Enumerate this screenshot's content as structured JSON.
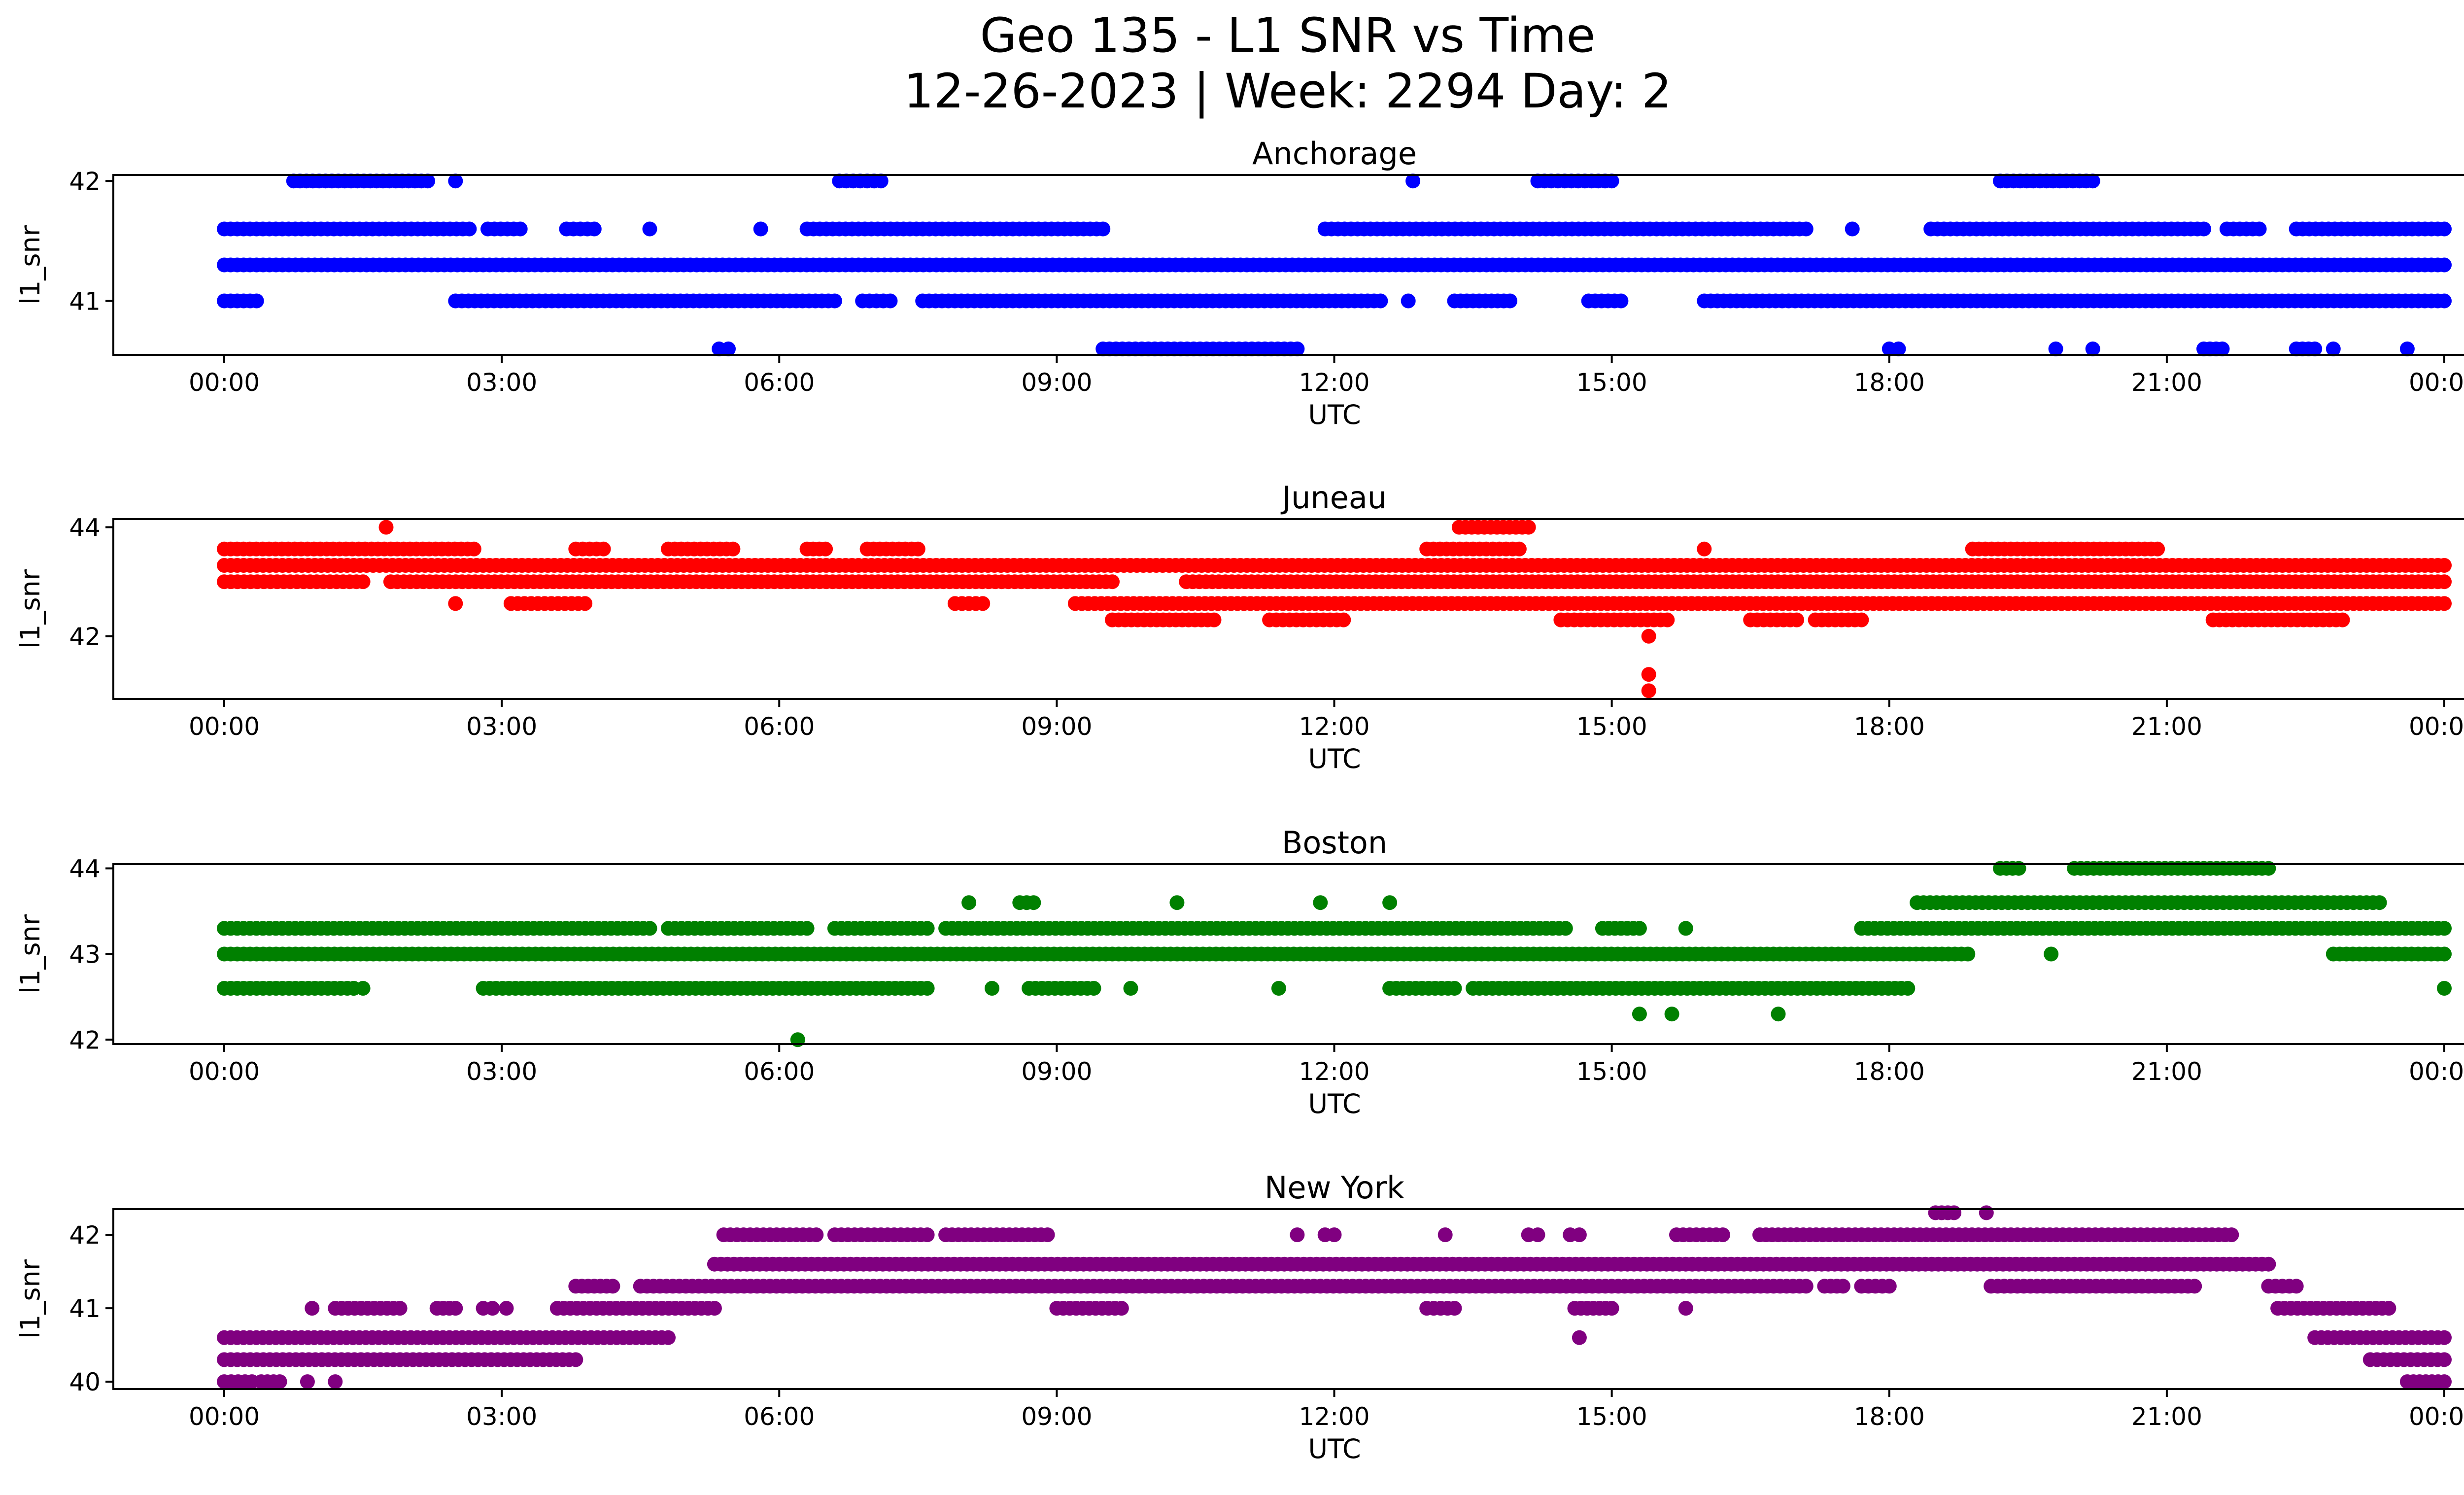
{
  "title_lines": [
    "Geo 135 - L1 SNR vs Time",
    "12-26-2023 | Week: 2294 Day: 2"
  ],
  "chart_data": [
    {
      "type": "scatter",
      "title": "Anchorage",
      "xlabel": "UTC",
      "ylabel": "l1_snr",
      "color": "#0000ff",
      "x_ticks": [
        "00:00",
        "03:00",
        "06:00",
        "09:00",
        "12:00",
        "15:00",
        "18:00",
        "21:00",
        "00:00"
      ],
      "y_ticks": [
        41,
        42
      ],
      "ylim": [
        40.55,
        42.05
      ],
      "series": [
        {
          "y": 42.0,
          "segments": [
            [
              0.75,
              2.2
            ],
            [
              2.5,
              2.5
            ],
            [
              6.65,
              7.1
            ],
            [
              12.85,
              12.85
            ],
            [
              14.2,
              15.0
            ],
            [
              19.2,
              20.2
            ]
          ]
        },
        {
          "y": 41.6,
          "segments": [
            [
              0.0,
              2.65
            ],
            [
              2.85,
              3.2
            ],
            [
              3.7,
              4.0
            ],
            [
              4.6,
              4.6
            ],
            [
              5.8,
              5.8
            ],
            [
              6.3,
              9.5
            ],
            [
              11.9,
              17.1
            ],
            [
              17.6,
              17.6
            ],
            [
              18.45,
              21.4
            ],
            [
              21.65,
              22.0
            ],
            [
              22.4,
              24.0
            ]
          ]
        },
        {
          "y": 41.3,
          "segments": [
            [
              0.0,
              24.0
            ]
          ]
        },
        {
          "y": 41.0,
          "segments": [
            [
              0.0,
              0.35
            ],
            [
              2.5,
              6.6
            ],
            [
              6.9,
              7.2
            ],
            [
              7.55,
              12.5
            ],
            [
              12.8,
              12.8
            ],
            [
              13.3,
              13.9
            ],
            [
              14.75,
              15.1
            ],
            [
              16.0,
              24.0
            ]
          ]
        },
        {
          "y": 40.6,
          "segments": [
            [
              5.35,
              5.45
            ],
            [
              9.5,
              11.6
            ],
            [
              18.0,
              18.1
            ],
            [
              19.8,
              19.8
            ],
            [
              20.2,
              20.2
            ],
            [
              21.4,
              21.6
            ],
            [
              22.4,
              22.6
            ],
            [
              22.8,
              22.8
            ],
            [
              23.6,
              23.6
            ]
          ]
        }
      ]
    },
    {
      "type": "scatter",
      "title": "Juneau",
      "xlabel": "UTC",
      "ylabel": "l1_snr",
      "color": "#ff0000",
      "x_ticks": [
        "00:00",
        "03:00",
        "06:00",
        "09:00",
        "12:00",
        "15:00",
        "18:00",
        "21:00",
        "00:00"
      ],
      "y_ticks": [
        42,
        44
      ],
      "ylim": [
        40.85,
        44.15
      ],
      "series": [
        {
          "y": 44.0,
          "segments": [
            [
              1.75,
              1.75
            ],
            [
              13.35,
              14.1
            ]
          ]
        },
        {
          "y": 43.6,
          "segments": [
            [
              0.0,
              2.7
            ],
            [
              3.8,
              4.1
            ],
            [
              4.8,
              5.5
            ],
            [
              6.3,
              6.5
            ],
            [
              6.95,
              7.5
            ],
            [
              13.0,
              14.0
            ],
            [
              16.0,
              16.0
            ],
            [
              18.9,
              20.9
            ]
          ]
        },
        {
          "y": 43.3,
          "segments": [
            [
              0.0,
              24.0
            ]
          ]
        },
        {
          "y": 43.0,
          "segments": [
            [
              0.0,
              1.5
            ],
            [
              1.8,
              9.6
            ],
            [
              10.4,
              14.0
            ],
            [
              14.0,
              24.0
            ]
          ]
        },
        {
          "y": 42.6,
          "segments": [
            [
              2.5,
              2.5
            ],
            [
              3.1,
              3.9
            ],
            [
              7.9,
              8.2
            ],
            [
              9.2,
              24.0
            ]
          ]
        },
        {
          "y": 42.3,
          "segments": [
            [
              9.6,
              10.7
            ],
            [
              11.3,
              12.1
            ],
            [
              14.45,
              15.6
            ],
            [
              16.5,
              17.0
            ],
            [
              17.2,
              17.7
            ],
            [
              21.5,
              22.9
            ]
          ]
        },
        {
          "y": 42.0,
          "segments": [
            [
              15.4,
              15.4
            ]
          ]
        },
        {
          "y": 41.3,
          "segments": [
            [
              15.4,
              15.4
            ]
          ]
        },
        {
          "y": 41.0,
          "segments": [
            [
              15.4,
              15.4
            ]
          ]
        }
      ]
    },
    {
      "type": "scatter",
      "title": "Boston",
      "xlabel": "UTC",
      "ylabel": "l1_snr",
      "color": "#008000",
      "x_ticks": [
        "00:00",
        "03:00",
        "06:00",
        "09:00",
        "12:00",
        "15:00",
        "18:00",
        "21:00",
        "00:00"
      ],
      "y_ticks": [
        42,
        43,
        44
      ],
      "ylim": [
        41.95,
        44.05
      ],
      "series": [
        {
          "y": 44.0,
          "segments": [
            [
              19.2,
              19.4
            ],
            [
              20.0,
              22.1
            ]
          ]
        },
        {
          "y": 43.6,
          "segments": [
            [
              8.05,
              8.05
            ],
            [
              8.6,
              8.75
            ],
            [
              10.3,
              10.3
            ],
            [
              11.85,
              11.85
            ],
            [
              12.6,
              12.6
            ],
            [
              18.3,
              23.3
            ]
          ]
        },
        {
          "y": 43.3,
          "segments": [
            [
              0.0,
              4.6
            ],
            [
              4.8,
              6.3
            ],
            [
              6.6,
              7.6
            ],
            [
              7.8,
              14.5
            ],
            [
              14.9,
              15.3
            ],
            [
              15.8,
              15.8
            ],
            [
              17.7,
              24.0
            ]
          ]
        },
        {
          "y": 43.0,
          "segments": [
            [
              0.0,
              18.85
            ],
            [
              19.75,
              19.75
            ],
            [
              22.8,
              24.0
            ]
          ]
        },
        {
          "y": 42.6,
          "segments": [
            [
              0.0,
              1.4
            ],
            [
              1.4,
              1.5
            ],
            [
              2.8,
              7.6
            ],
            [
              8.3,
              8.3
            ],
            [
              8.7,
              9.4
            ],
            [
              9.8,
              9.8
            ],
            [
              11.4,
              11.4
            ],
            [
              12.6,
              13.3
            ],
            [
              13.5,
              18.2
            ],
            [
              24.0,
              24.0
            ]
          ]
        },
        {
          "y": 42.3,
          "segments": [
            [
              15.3,
              15.3
            ],
            [
              15.65,
              15.65
            ],
            [
              16.8,
              16.8
            ]
          ]
        },
        {
          "y": 42.0,
          "segments": [
            [
              6.2,
              6.2
            ]
          ]
        }
      ]
    },
    {
      "type": "scatter",
      "title": "New York",
      "xlabel": "UTC",
      "ylabel": "l1_snr",
      "color": "#800080",
      "x_ticks": [
        "00:00",
        "03:00",
        "06:00",
        "09:00",
        "12:00",
        "15:00",
        "18:00",
        "21:00",
        "00:00"
      ],
      "y_ticks": [
        40,
        41,
        42
      ],
      "ylim": [
        39.9,
        42.35
      ],
      "series": [
        {
          "y": 42.3,
          "segments": [
            [
              18.5,
              18.7
            ],
            [
              19.05,
              19.05
            ]
          ]
        },
        {
          "y": 42.0,
          "segments": [
            [
              5.4,
              6.4
            ],
            [
              6.6,
              7.6
            ],
            [
              7.8,
              8.9
            ],
            [
              11.6,
              11.6
            ],
            [
              11.9,
              12.0
            ],
            [
              13.2,
              13.2
            ],
            [
              14.1,
              14.2
            ],
            [
              14.55,
              14.65
            ],
            [
              15.7,
              16.2
            ],
            [
              16.6,
              17.0
            ],
            [
              17.0,
              21.7
            ]
          ]
        },
        {
          "y": 41.6,
          "segments": [
            [
              5.3,
              22.1
            ]
          ]
        },
        {
          "y": 41.3,
          "segments": [
            [
              3.8,
              4.2
            ],
            [
              4.5,
              17.1
            ],
            [
              17.3,
              17.5
            ],
            [
              17.7,
              18.0
            ],
            [
              19.1,
              21.3
            ],
            [
              22.1,
              22.4
            ]
          ]
        },
        {
          "y": 41.0,
          "segments": [
            [
              0.95,
              0.95
            ],
            [
              1.2,
              1.9
            ],
            [
              2.3,
              2.5
            ],
            [
              2.8,
              2.9
            ],
            [
              3.05,
              3.05
            ],
            [
              3.6,
              5.3
            ],
            [
              9.0,
              9.7
            ],
            [
              13.0,
              13.3
            ],
            [
              14.6,
              15.0
            ],
            [
              15.8,
              15.8
            ],
            [
              22.2,
              23.4
            ]
          ]
        },
        {
          "y": 40.6,
          "segments": [
            [
              0.0,
              4.8
            ],
            [
              14.65,
              14.65
            ],
            [
              22.6,
              24.0
            ]
          ]
        },
        {
          "y": 40.3,
          "segments": [
            [
              0.0,
              3.8
            ],
            [
              23.2,
              24.0
            ]
          ]
        },
        {
          "y": 40.0,
          "segments": [
            [
              0.0,
              0.3
            ],
            [
              0.4,
              0.6
            ],
            [
              0.9,
              0.9
            ],
            [
              1.2,
              1.2
            ],
            [
              23.6,
              24.0
            ]
          ]
        }
      ]
    }
  ]
}
